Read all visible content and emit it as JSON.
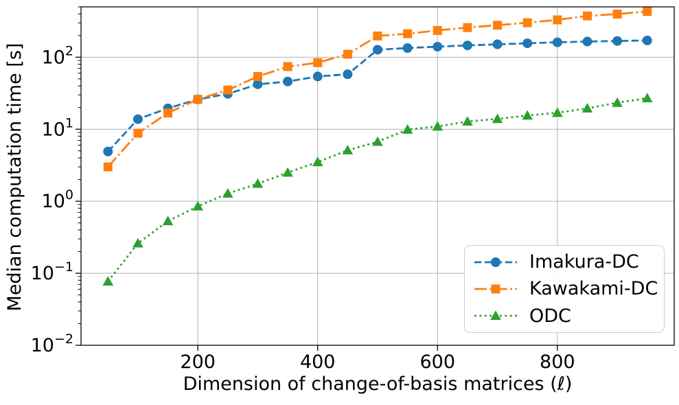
{
  "chart_data": {
    "type": "line",
    "xlabel": "Dimension of change-of-basis matrices (ℓ)",
    "ylabel": "Median computation time [s]",
    "yscale": "log",
    "xlim": [
      5,
      995
    ],
    "ylim": [
      0.01,
      500
    ],
    "xticks": [
      200,
      400,
      600,
      800
    ],
    "ytick_exponents": [
      -2,
      -1,
      0,
      1,
      2
    ],
    "grid": true,
    "legend_position": "lower right",
    "x": [
      50,
      100,
      150,
      200,
      250,
      300,
      350,
      400,
      450,
      500,
      550,
      600,
      650,
      700,
      750,
      800,
      850,
      900,
      950
    ],
    "series": [
      {
        "name": "Imakura-DC",
        "color": "#1f77b4",
        "linestyle": "dashed",
        "marker": "circle",
        "values": [
          4.9,
          13.8,
          19.5,
          26,
          31,
          42,
          46,
          54,
          58,
          127,
          134,
          140,
          146,
          151,
          156,
          161,
          165,
          168,
          171
        ]
      },
      {
        "name": "Kawakami-DC",
        "color": "#ff7f0e",
        "linestyle": "dashdot",
        "marker": "square",
        "values": [
          3.0,
          8.8,
          16.8,
          26,
          35,
          54,
          74,
          84,
          110,
          197,
          212,
          235,
          258,
          278,
          301,
          330,
          374,
          397,
          432
        ]
      },
      {
        "name": "ODC",
        "color": "#2ca02c",
        "linestyle": "dotted",
        "marker": "triangle",
        "values": [
          0.077,
          0.26,
          0.53,
          0.85,
          1.28,
          1.75,
          2.5,
          3.5,
          5.1,
          6.7,
          9.9,
          10.9,
          12.8,
          13.9,
          15.5,
          16.9,
          19.5,
          23.3,
          27
        ]
      }
    ],
    "colors": {
      "grid": "#b0b0b0",
      "spine": "#000000",
      "tick": "#000000"
    }
  }
}
